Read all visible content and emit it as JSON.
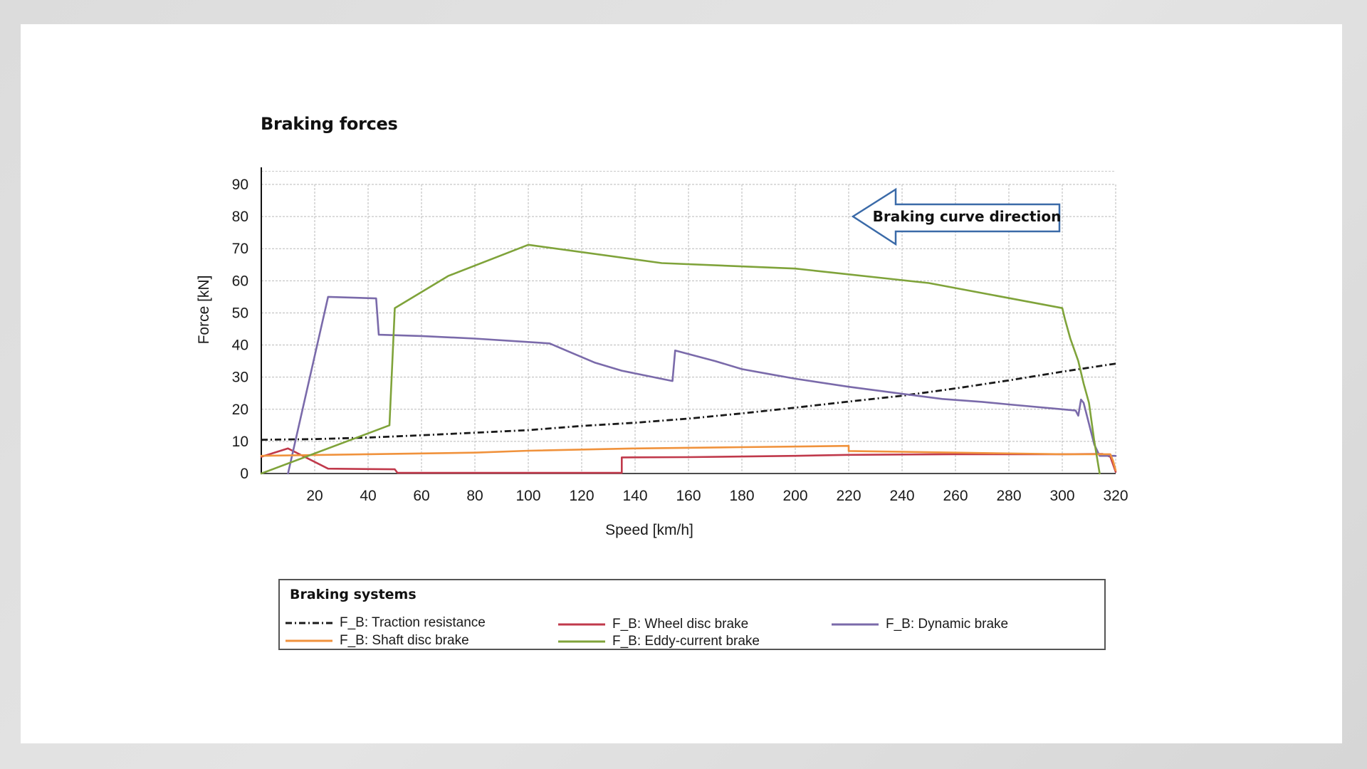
{
  "chart_data": {
    "type": "line",
    "title": "Braking forces",
    "xlabel": "Speed [km/h]",
    "ylabel": "Force [kN]",
    "xlim": [
      0,
      320
    ],
    "ylim": [
      0,
      95
    ],
    "x_ticks": [
      20,
      40,
      60,
      80,
      100,
      120,
      140,
      160,
      180,
      200,
      220,
      240,
      260,
      280,
      300,
      320
    ],
    "y_ticks": [
      0,
      10,
      20,
      30,
      40,
      50,
      60,
      70,
      80,
      90
    ],
    "grid": true,
    "annotation": "Braking curve direction",
    "legend_title": "Braking systems",
    "series": [
      {
        "name": "F_B: Traction resistance",
        "color": "#1a1a1a",
        "style": "dash-dot",
        "points": [
          [
            0,
            10.5
          ],
          [
            20,
            10.7
          ],
          [
            40,
            11.2
          ],
          [
            60,
            11.9
          ],
          [
            80,
            12.7
          ],
          [
            100,
            13.5
          ],
          [
            120,
            14.8
          ],
          [
            140,
            15.8
          ],
          [
            160,
            17.1
          ],
          [
            180,
            18.7
          ],
          [
            200,
            20.5
          ],
          [
            220,
            22.4
          ],
          [
            240,
            24.2
          ],
          [
            260,
            26.5
          ],
          [
            280,
            29.0
          ],
          [
            300,
            31.7
          ],
          [
            320,
            34.2
          ]
        ]
      },
      {
        "name": "F_B: Wheel disc brake",
        "color": "#c0394b",
        "style": "solid",
        "points": [
          [
            0,
            5.2
          ],
          [
            10,
            7.8
          ],
          [
            25,
            1.5
          ],
          [
            50,
            1.3
          ],
          [
            51,
            0.2
          ],
          [
            135,
            0.2
          ],
          [
            135,
            5.0
          ],
          [
            160,
            5.1
          ],
          [
            200,
            5.5
          ],
          [
            220,
            5.8
          ],
          [
            260,
            6.0
          ],
          [
            300,
            6.0
          ],
          [
            315,
            6.1
          ],
          [
            318,
            5.2
          ],
          [
            320,
            0.5
          ]
        ]
      },
      {
        "name": "F_B: Dynamic brake",
        "color": "#7a6aaa",
        "style": "solid",
        "points": [
          [
            10,
            0
          ],
          [
            25,
            55.0
          ],
          [
            43,
            54.5
          ],
          [
            44,
            43.2
          ],
          [
            60,
            42.8
          ],
          [
            80,
            42.0
          ],
          [
            108,
            40.5
          ],
          [
            115,
            38.0
          ],
          [
            125,
            34.5
          ],
          [
            135,
            32.0
          ],
          [
            154,
            28.8
          ],
          [
            155,
            38.3
          ],
          [
            170,
            35.0
          ],
          [
            180,
            32.5
          ],
          [
            190,
            31.0
          ],
          [
            200,
            29.5
          ],
          [
            220,
            27.0
          ],
          [
            240,
            24.8
          ],
          [
            255,
            23.2
          ],
          [
            270,
            22.3
          ],
          [
            280,
            21.5
          ],
          [
            300,
            20.0
          ],
          [
            305,
            19.6
          ],
          [
            306,
            18.0
          ],
          [
            307,
            23.0
          ],
          [
            308,
            22.0
          ],
          [
            312,
            9.0
          ],
          [
            314,
            5.5
          ],
          [
            320,
            5.5
          ]
        ]
      },
      {
        "name": "F_B: Shaft disc brake",
        "color": "#f0923c",
        "style": "solid",
        "points": [
          [
            0,
            5.5
          ],
          [
            40,
            6.0
          ],
          [
            80,
            6.5
          ],
          [
            100,
            7.1
          ],
          [
            140,
            7.8
          ],
          [
            180,
            8.2
          ],
          [
            220,
            8.6
          ],
          [
            220,
            7.0
          ],
          [
            260,
            6.5
          ],
          [
            300,
            6.0
          ],
          [
            318,
            6.0
          ],
          [
            319,
            4.0
          ],
          [
            320,
            1.0
          ]
        ]
      },
      {
        "name": "F_B: Eddy-current brake",
        "color": "#7fa33a",
        "style": "solid",
        "points": [
          [
            0,
            0
          ],
          [
            48,
            15.0
          ],
          [
            50,
            51.5
          ],
          [
            70,
            61.5
          ],
          [
            100,
            71.2
          ],
          [
            150,
            65.5
          ],
          [
            200,
            63.8
          ],
          [
            250,
            59.3
          ],
          [
            300,
            51.5
          ],
          [
            301,
            48.0
          ],
          [
            303,
            42.0
          ],
          [
            306,
            35.0
          ],
          [
            308,
            28.0
          ],
          [
            310,
            22.0
          ],
          [
            312,
            10.0
          ],
          [
            314,
            0
          ]
        ]
      }
    ]
  }
}
